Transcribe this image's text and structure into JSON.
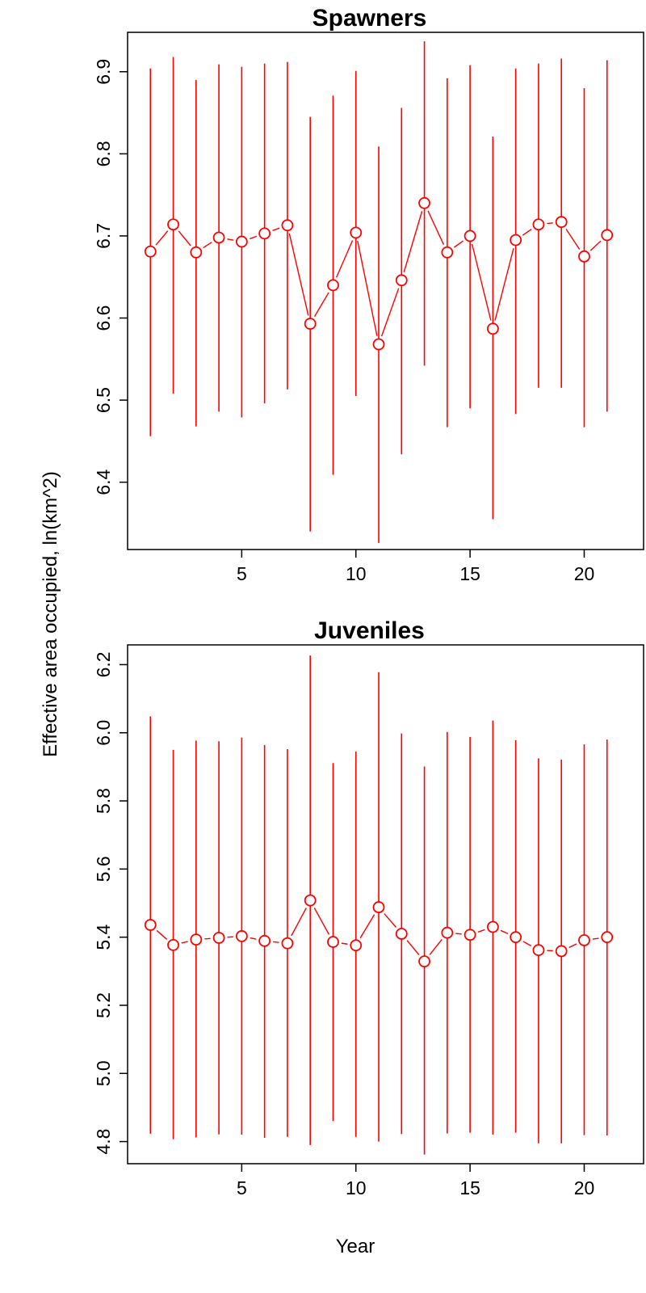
{
  "chart_data": {
    "type": "scatter",
    "xlabel": "Year",
    "ylabel": "Effective area occupied, ln(km^2)",
    "marker_color": "#ff0000",
    "marker": "open-circle",
    "error_bars": "vertical",
    "panels": [
      {
        "title": "Spawners",
        "xlim": [
          0,
          22.6
        ],
        "ylim": [
          6.318,
          6.948
        ],
        "xticks": [
          5,
          10,
          15,
          20
        ],
        "yticks": [
          6.4,
          6.5,
          6.6,
          6.7,
          6.8,
          6.9
        ],
        "xticklabels": [
          "5",
          "10",
          "15",
          "20"
        ],
        "yticklabels": [
          "6.4",
          "6.5",
          "6.6",
          "6.7",
          "6.8",
          "6.9"
        ],
        "x": [
          1,
          2,
          3,
          4,
          5,
          6,
          7,
          8,
          9,
          10,
          11,
          12,
          13,
          14,
          15,
          16,
          17,
          18,
          19,
          20,
          21
        ],
        "y": [
          6.681,
          6.714,
          6.68,
          6.698,
          6.693,
          6.703,
          6.713,
          6.593,
          6.64,
          6.704,
          6.568,
          6.646,
          6.74,
          6.68,
          6.7,
          6.587,
          6.695,
          6.714,
          6.717,
          6.675,
          6.701
        ],
        "lower": [
          6.456,
          6.508,
          6.468,
          6.486,
          6.479,
          6.496,
          6.513,
          6.34,
          6.409,
          6.505,
          6.326,
          6.434,
          6.542,
          6.467,
          6.49,
          6.355,
          6.483,
          6.515,
          6.515,
          6.467,
          6.486
        ],
        "upper": [
          6.904,
          6.918,
          6.89,
          6.909,
          6.906,
          6.91,
          6.912,
          6.845,
          6.871,
          6.901,
          6.809,
          6.856,
          6.937,
          6.892,
          6.908,
          6.821,
          6.904,
          6.91,
          6.916,
          6.88,
          6.914
        ]
      },
      {
        "title": "Juveniles",
        "xlim": [
          0,
          22.6
        ],
        "ylim": [
          4.735,
          6.258
        ],
        "xticks": [
          5,
          10,
          15,
          20
        ],
        "yticks": [
          4.8,
          5.0,
          5.2,
          5.4,
          5.6,
          5.8,
          6.0,
          6.2
        ],
        "xticklabels": [
          "5",
          "10",
          "15",
          "20"
        ],
        "yticklabels": [
          "4.8",
          "5.0",
          "5.2",
          "5.4",
          "5.6",
          "5.8",
          "6.0",
          "6.2"
        ],
        "x": [
          1,
          2,
          3,
          4,
          5,
          6,
          7,
          8,
          9,
          10,
          11,
          12,
          13,
          14,
          15,
          16,
          17,
          18,
          19,
          20,
          21
        ],
        "y": [
          5.436,
          5.377,
          5.393,
          5.398,
          5.403,
          5.389,
          5.382,
          5.508,
          5.386,
          5.376,
          5.488,
          5.41,
          5.329,
          5.413,
          5.407,
          5.43,
          5.4,
          5.362,
          5.359,
          5.391,
          5.4
        ],
        "lower": [
          4.823,
          4.807,
          4.812,
          4.821,
          4.82,
          4.811,
          4.814,
          4.79,
          4.86,
          4.814,
          4.8,
          4.822,
          4.762,
          4.824,
          4.826,
          4.82,
          4.826,
          4.795,
          4.795,
          4.819,
          4.818
        ],
        "upper": [
          6.048,
          5.95,
          5.977,
          5.975,
          5.986,
          5.964,
          5.952,
          6.227,
          5.911,
          5.945,
          6.178,
          5.998,
          5.901,
          6.002,
          5.988,
          6.036,
          5.978,
          5.925,
          5.921,
          5.966,
          5.98
        ]
      }
    ]
  }
}
